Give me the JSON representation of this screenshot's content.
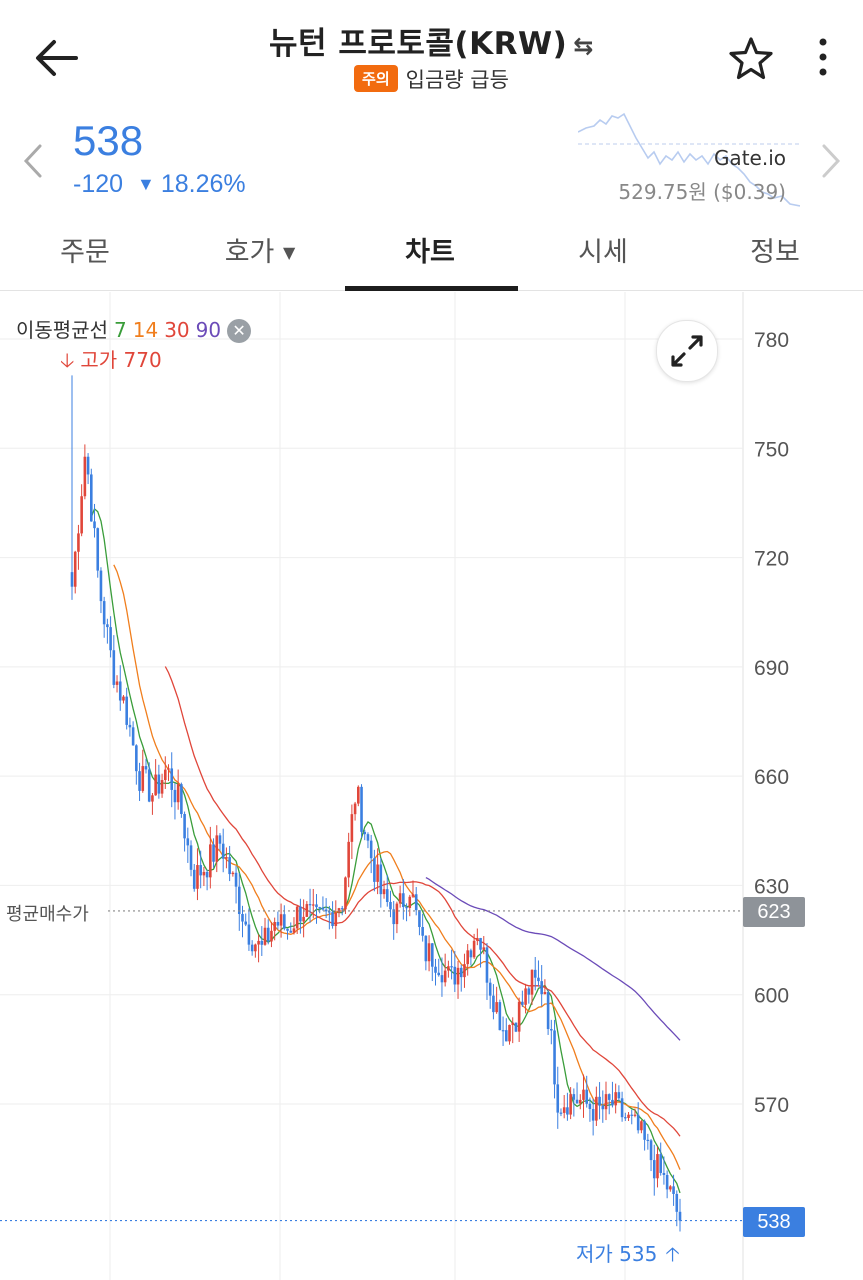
{
  "header": {
    "title": "뉴턴 프로토콜(KRW)",
    "swap_glyph": "⇆",
    "badge": "주의",
    "subtitle": "입금량 급등"
  },
  "price": {
    "current": "538",
    "change": "-120",
    "change_arrow": "▼",
    "change_pct": "18.26%",
    "exchange": "Gate.io",
    "exchange_price": "529.75원 ($0.39)"
  },
  "tabs": [
    {
      "label": "주문"
    },
    {
      "label": "호가"
    },
    {
      "label": "차트"
    },
    {
      "label": "시세"
    },
    {
      "label": "정보"
    }
  ],
  "chart_meta": {
    "ma_title": "이동평균선",
    "ma_periods": [
      "7",
      "14",
      "30",
      "90"
    ],
    "ma_close": "✕",
    "high_label": "고가 770",
    "low_label": "저가 535",
    "avg_label": "평균매수가",
    "avg_value": "623",
    "current_value": "538"
  },
  "colors": {
    "up": "#e0463a",
    "down": "#3b7fe0",
    "ma7": "#3a9d3a",
    "ma14": "#f07e1d",
    "ma30": "#e0463a",
    "ma90": "#6b4bb8",
    "accent": "#3b7fe0"
  },
  "icons": {
    "back": "arrow-left-icon",
    "star": "star-icon",
    "more": "more-vertical-icon",
    "expand": "expand-icon"
  },
  "chart_data": {
    "type": "candlestick",
    "title": "",
    "y_ticks": [
      780,
      750,
      720,
      690,
      660,
      630,
      600,
      570
    ],
    "ylim": [
      525,
      792
    ],
    "high": 770,
    "low": 535,
    "average_price": 623,
    "current": 538,
    "close_trend": [
      712,
      750,
      712,
      690,
      678,
      660,
      655,
      662,
      652,
      632,
      636,
      642,
      630,
      618,
      612,
      620,
      618,
      624,
      620,
      622,
      626,
      656,
      640,
      626,
      622,
      630,
      612,
      610,
      604,
      610,
      618,
      602,
      590,
      595,
      603,
      602,
      570,
      572,
      570,
      568,
      570,
      566,
      562,
      554,
      548,
      538
    ],
    "ma_series": [
      {
        "name": "7",
        "color": "#3a9d3a"
      },
      {
        "name": "14",
        "color": "#f07e1d"
      },
      {
        "name": "30",
        "color": "#e0463a"
      },
      {
        "name": "90",
        "color": "#6b4bb8"
      }
    ]
  }
}
